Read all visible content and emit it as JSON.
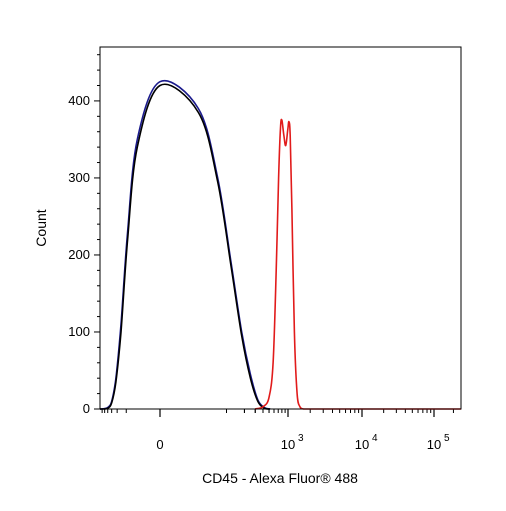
{
  "chart_data": {
    "type": "line",
    "title": "",
    "xlabel": "CD45 - Alexa Fluor® 488",
    "ylabel": "Count",
    "x_scale": "biexponential",
    "ylim": [
      0,
      470
    ],
    "y_ticks": [
      0,
      100,
      200,
      300,
      400
    ],
    "x_ticks": [
      {
        "value": 0,
        "base": "0",
        "exp": ""
      },
      {
        "value": 1000,
        "base": "10",
        "exp": "3"
      },
      {
        "value": 10000,
        "base": "10",
        "exp": "4"
      },
      {
        "value": 100000,
        "base": "10",
        "exp": "5"
      }
    ],
    "grid": false,
    "legend": "none",
    "series": [
      {
        "color": "#1a1a8c",
        "points": [
          [
            -600,
            0
          ],
          [
            -400,
            2
          ],
          [
            -300,
            10
          ],
          [
            -220,
            40
          ],
          [
            -150,
            110
          ],
          [
            -90,
            230
          ],
          [
            -40,
            350
          ],
          [
            0,
            425
          ],
          [
            30,
            390
          ],
          [
            70,
            300
          ],
          [
            120,
            190
          ],
          [
            180,
            100
          ],
          [
            250,
            45
          ],
          [
            330,
            12
          ],
          [
            420,
            2
          ],
          [
            520,
            0
          ]
        ]
      },
      {
        "color": "#000000",
        "points": [
          [
            -600,
            0
          ],
          [
            -400,
            1
          ],
          [
            -300,
            8
          ],
          [
            -220,
            35
          ],
          [
            -150,
            100
          ],
          [
            -90,
            220
          ],
          [
            -40,
            340
          ],
          [
            0,
            420
          ],
          [
            30,
            385
          ],
          [
            70,
            295
          ],
          [
            120,
            185
          ],
          [
            180,
            95
          ],
          [
            250,
            40
          ],
          [
            330,
            10
          ],
          [
            420,
            1
          ],
          [
            520,
            0
          ]
        ]
      },
      {
        "color": "#e11b1b",
        "points": [
          [
            300,
            0
          ],
          [
            400,
            3
          ],
          [
            500,
            15
          ],
          [
            580,
            60
          ],
          [
            650,
            180
          ],
          [
            710,
            300
          ],
          [
            760,
            365
          ],
          [
            800,
            375
          ],
          [
            860,
            355
          ],
          [
            920,
            342
          ],
          [
            990,
            362
          ],
          [
            1030,
            373
          ],
          [
            1070,
            355
          ],
          [
            1130,
            260
          ],
          [
            1220,
            100
          ],
          [
            1330,
            20
          ],
          [
            1450,
            3
          ],
          [
            1600,
            0
          ]
        ]
      }
    ]
  }
}
